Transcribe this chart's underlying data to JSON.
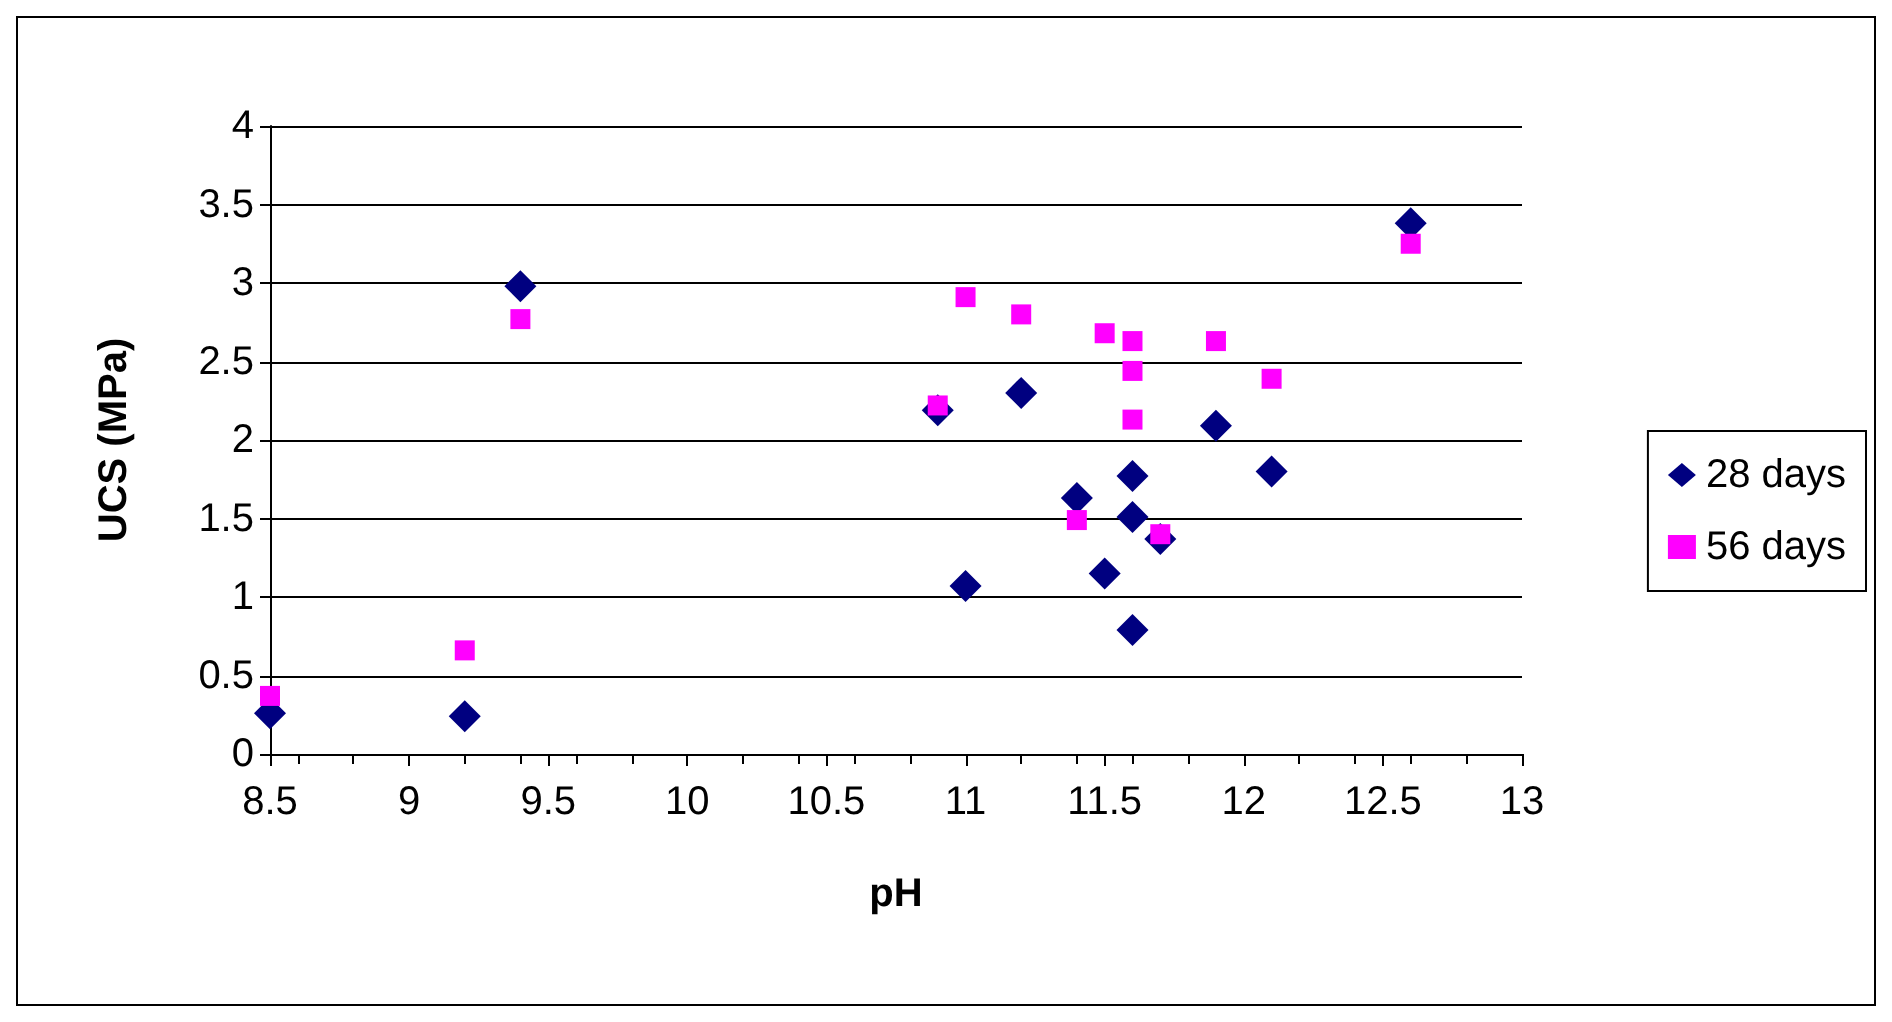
{
  "chart_data": {
    "type": "scatter",
    "xlabel": "pH",
    "ylabel": "UCS (MPa)",
    "xlim": [
      8.5,
      13
    ],
    "xticks": [
      8.5,
      9,
      9.5,
      10,
      10.5,
      11,
      11.5,
      12,
      12.5,
      13
    ],
    "ylim": [
      0,
      4
    ],
    "yticks": [
      0,
      0.5,
      1,
      1.5,
      2,
      2.5,
      3,
      3.5,
      4
    ],
    "grid": "y",
    "legend": "right",
    "series": [
      {
        "name": "28 days",
        "color": "#000080",
        "marker": "diamond",
        "x": [
          8.5,
          9.2,
          9.4,
          10.9,
          11.0,
          11.2,
          11.4,
          11.5,
          11.6,
          11.6,
          11.6,
          11.7,
          11.9,
          12.1,
          12.6
        ],
        "values": [
          0.26,
          0.24,
          2.98,
          2.19,
          1.07,
          2.3,
          1.63,
          1.15,
          1.77,
          1.51,
          0.79,
          1.37,
          2.09,
          1.8,
          3.38
        ]
      },
      {
        "name": "56 days",
        "color": "#ff00ff",
        "marker": "square",
        "x": [
          8.5,
          9.2,
          9.4,
          10.9,
          11.0,
          11.2,
          11.4,
          11.5,
          11.6,
          11.6,
          11.6,
          11.7,
          11.9,
          12.1,
          12.6
        ],
        "values": [
          0.37,
          0.66,
          2.77,
          2.22,
          2.91,
          2.8,
          1.49,
          2.68,
          2.63,
          2.44,
          2.13,
          1.4,
          2.63,
          2.39,
          3.25
        ]
      }
    ]
  }
}
